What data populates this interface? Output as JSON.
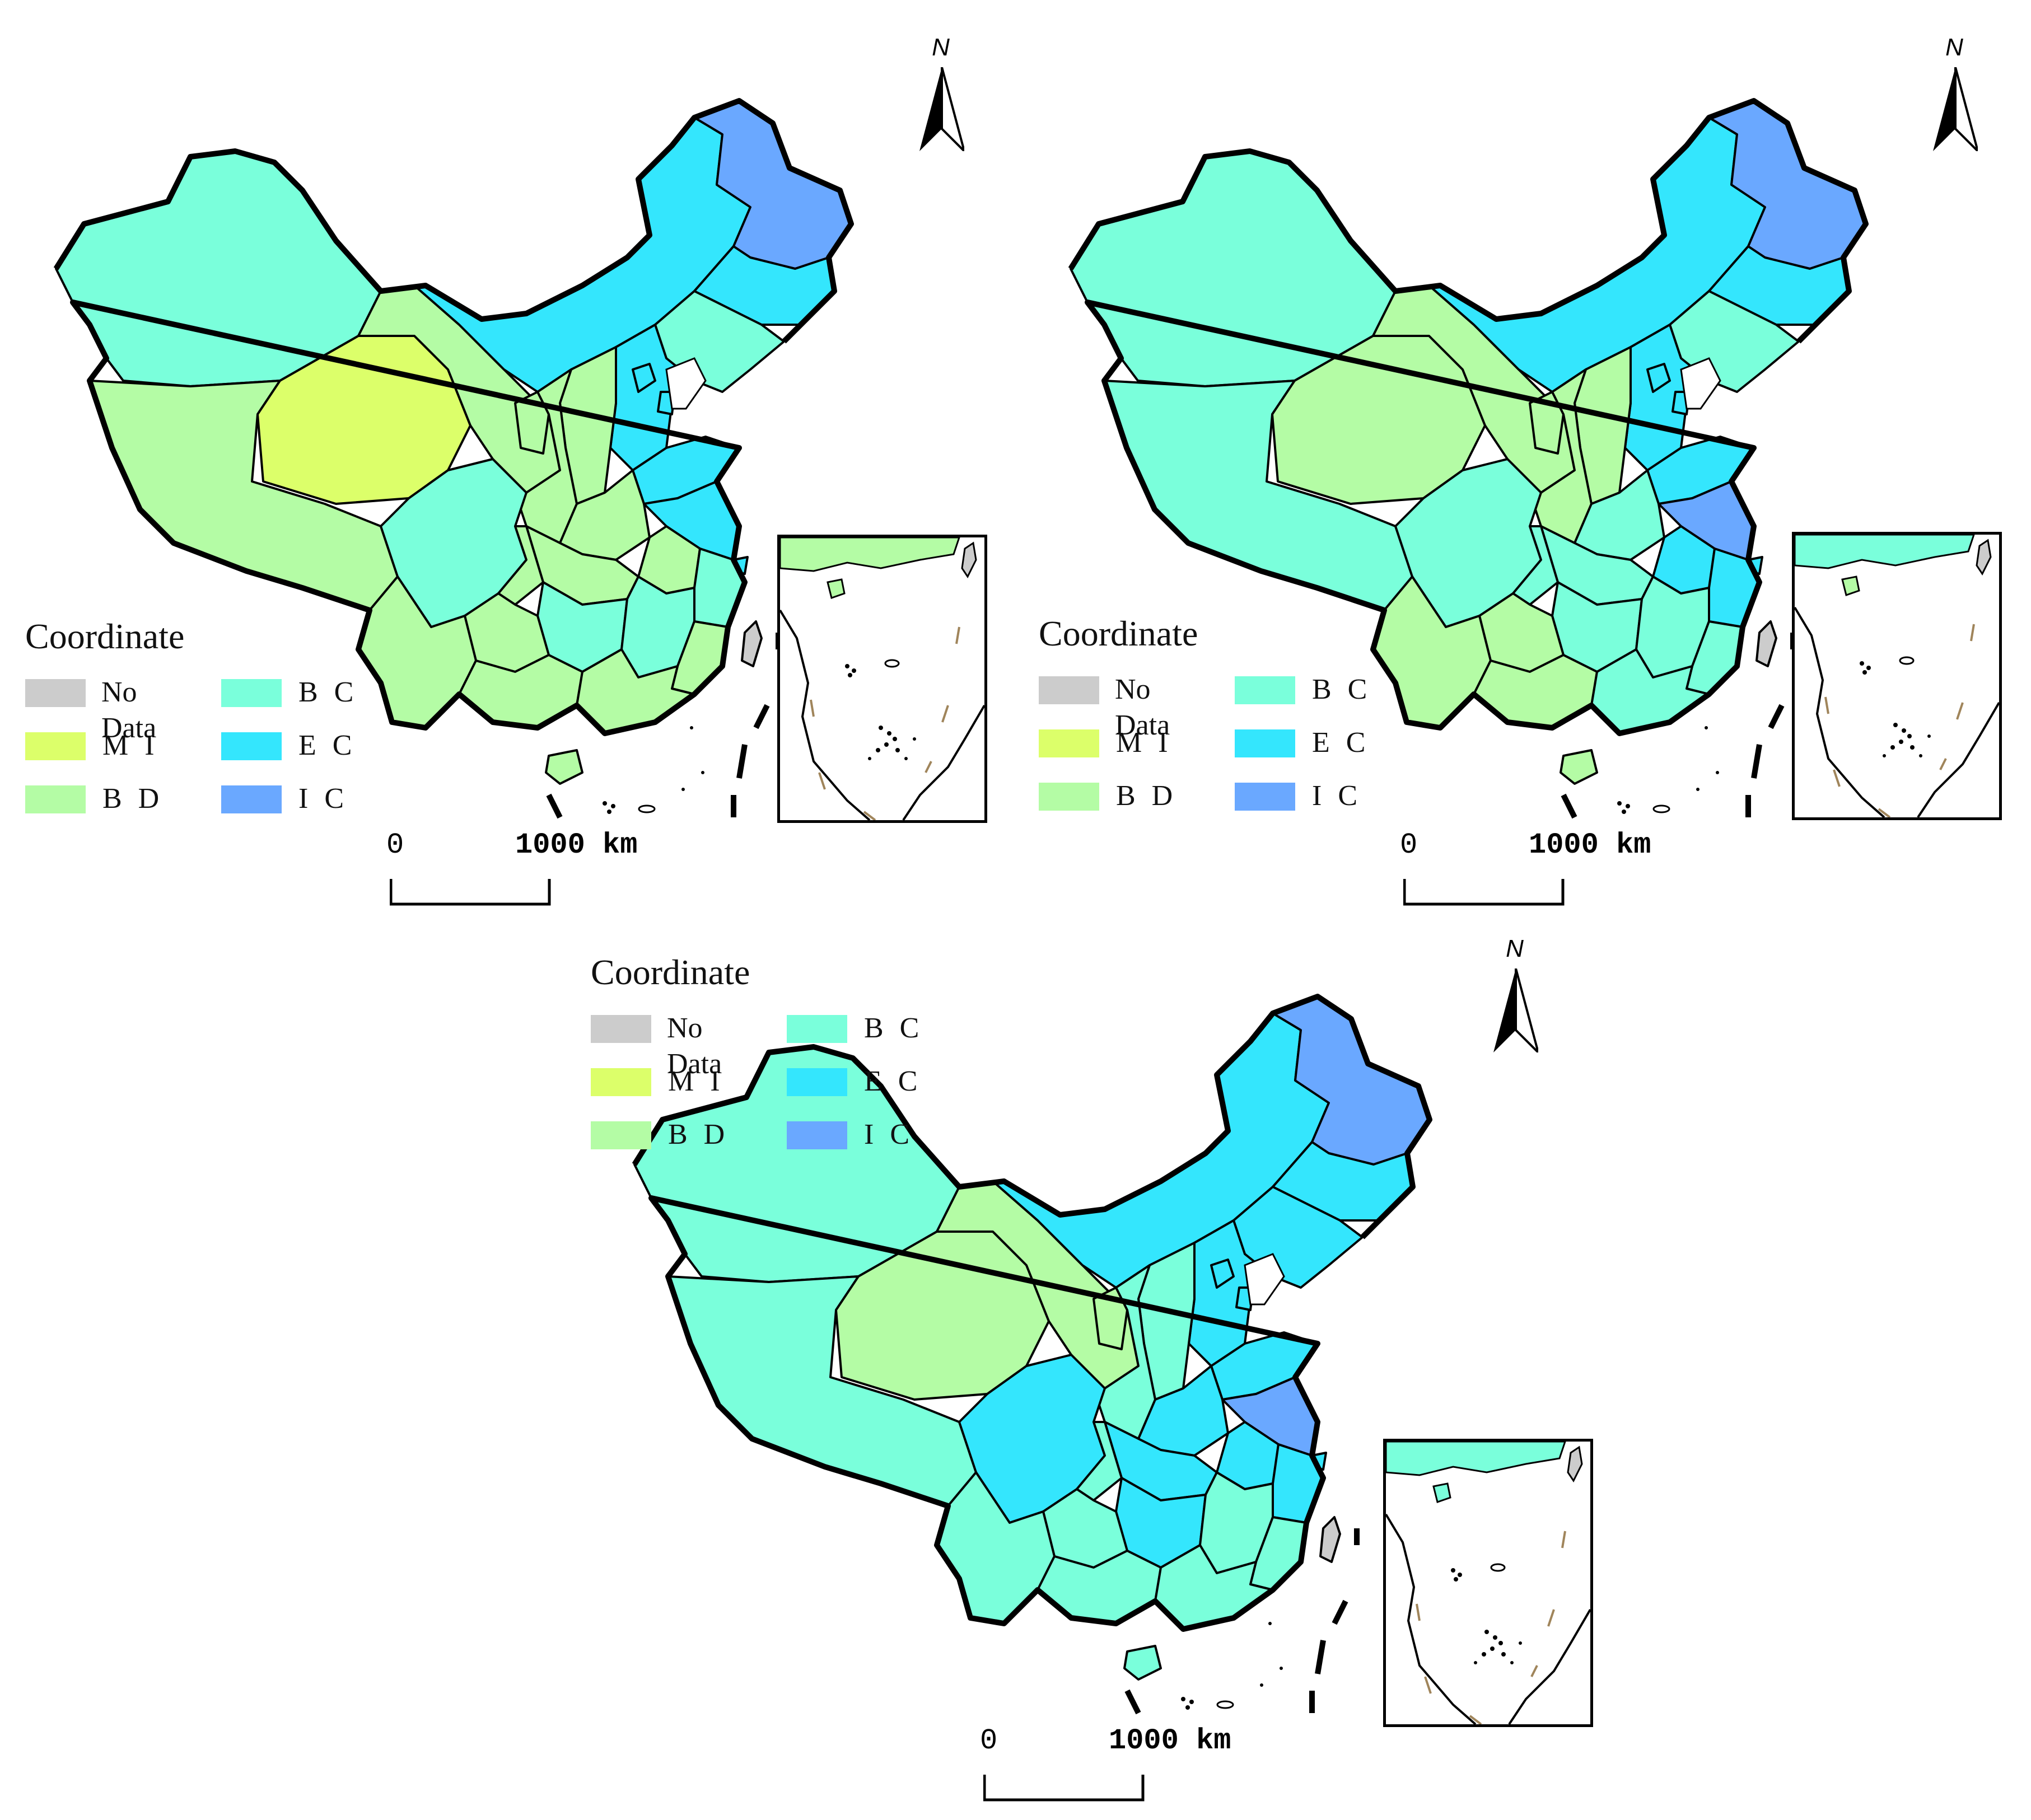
{
  "colors": {
    "no_data": "#cccccc",
    "MI": "#dcff6a",
    "BD": "#b4fca5",
    "BC": "#7affdb",
    "EC": "#34e6fd",
    "IC": "#6aa8ff",
    "border": "#000000",
    "dash": "#a0855b"
  },
  "legend": {
    "title": "Coordinate",
    "items": [
      {
        "key": "no_data",
        "label": "No Data"
      },
      {
        "key": "MI",
        "label": "M I"
      },
      {
        "key": "BD",
        "label": "B D"
      },
      {
        "key": "BC",
        "label": "B C"
      },
      {
        "key": "EC",
        "label": "E C"
      },
      {
        "key": "IC",
        "label": "I C"
      }
    ]
  },
  "north_label": "N",
  "scale": {
    "start": "0",
    "end": "1000 km"
  },
  "panels": [
    {
      "xinjiang": "BC",
      "tibet": "BD",
      "qinghai": "MI",
      "gansu": "BD",
      "inner_mongolia": "EC",
      "heilongjiang": "IC",
      "jilin": "EC",
      "liaoning": "BC",
      "hebei": "EC",
      "shanxi": "BD",
      "shaanxi": "BD",
      "ningxia": "BD",
      "sichuan": "BC",
      "chongqing": "BD",
      "yunnan": "BD",
      "guizhou": "BD",
      "guangxi": "BD",
      "guangdong": "BD",
      "hunan": "BC",
      "hubei": "BD",
      "henan": "BD",
      "shandong": "EC",
      "jiangsu": "EC",
      "anhui": "BD",
      "zhejiang": "BC",
      "jiangxi": "BC",
      "fujian": "BD",
      "hainan": "BD",
      "beijing": "EC",
      "tianjin": "EC",
      "shanghai": "EC",
      "taiwan": "no_data"
    },
    {
      "xinjiang": "BC",
      "tibet": "BC",
      "qinghai": "BD",
      "gansu": "BD",
      "inner_mongolia": "EC",
      "heilongjiang": "IC",
      "jilin": "EC",
      "liaoning": "BC",
      "hebei": "EC",
      "shanxi": "BD",
      "shaanxi": "BD",
      "ningxia": "BD",
      "sichuan": "BC",
      "chongqing": "BC",
      "yunnan": "BD",
      "guizhou": "BD",
      "guangxi": "BD",
      "guangdong": "BC",
      "hunan": "BC",
      "hubei": "BC",
      "henan": "BC",
      "shandong": "EC",
      "jiangsu": "IC",
      "anhui": "EC",
      "zhejiang": "EC",
      "jiangxi": "BC",
      "fujian": "BC",
      "hainan": "BD",
      "beijing": "EC",
      "tianjin": "EC",
      "shanghai": "EC",
      "taiwan": "no_data"
    },
    {
      "xinjiang": "BC",
      "tibet": "BC",
      "qinghai": "BD",
      "gansu": "BD",
      "inner_mongolia": "EC",
      "heilongjiang": "IC",
      "jilin": "EC",
      "liaoning": "EC",
      "hebei": "EC",
      "shanxi": "BC",
      "shaanxi": "BC",
      "ningxia": "BD",
      "sichuan": "EC",
      "chongqing": "BC",
      "yunnan": "BC",
      "guizhou": "BC",
      "guangxi": "BC",
      "guangdong": "BC",
      "hunan": "EC",
      "hubei": "EC",
      "henan": "EC",
      "shandong": "EC",
      "jiangsu": "IC",
      "anhui": "EC",
      "zhejiang": "EC",
      "jiangxi": "BC",
      "fujian": "BC",
      "hainan": "BC",
      "beijing": "EC",
      "tianjin": "EC",
      "shanghai": "EC",
      "taiwan": "no_data"
    }
  ]
}
